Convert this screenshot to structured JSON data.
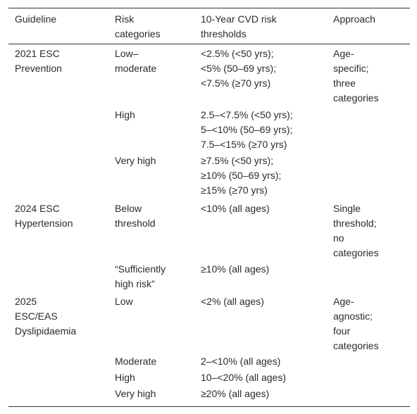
{
  "table": {
    "columns": [
      [
        "Guideline"
      ],
      [
        "Risk",
        "categories"
      ],
      [
        "10-Year CVD risk",
        "thresholds"
      ],
      [
        "Approach"
      ]
    ],
    "groups": [
      {
        "guideline": [
          "2021 ESC",
          "Prevention"
        ],
        "approach": [
          "Age-",
          "specific;",
          "three",
          "categories"
        ],
        "rows": [
          {
            "category": [
              "Low–",
              "moderate"
            ],
            "thresholds": [
              "<2.5% (<50 yrs);",
              "<5% (50–69 yrs);",
              "<7.5% (≥70 yrs)"
            ]
          },
          {
            "category": [
              "High"
            ],
            "thresholds": [
              "2.5–<7.5% (<50 yrs);",
              "5–<10% (50–69 yrs);",
              "7.5–<15% (≥70 yrs)"
            ]
          },
          {
            "category": [
              "Very high"
            ],
            "thresholds": [
              "≥7.5% (<50 yrs);",
              "≥10% (50–69 yrs);",
              "≥15% (≥70 yrs)"
            ]
          }
        ]
      },
      {
        "guideline": [
          "2024 ESC",
          "Hypertension"
        ],
        "approach": [
          "Single",
          "threshold;",
          "no",
          "categories"
        ],
        "rows": [
          {
            "category": [
              "Below",
              "threshold"
            ],
            "thresholds": [
              "<10% (all ages)"
            ]
          },
          {
            "category": [
              "“Sufficiently",
              "high risk”"
            ],
            "thresholds": [
              "≥10% (all ages)"
            ]
          }
        ]
      },
      {
        "guideline": [
          "2025",
          "ESC/EAS",
          "Dyslipidaemia"
        ],
        "approach": [
          "Age-",
          "agnostic;",
          "four",
          "categories"
        ],
        "rows": [
          {
            "category": [
              "Low"
            ],
            "thresholds": [
              "<2% (all ages)"
            ]
          },
          {
            "category": [
              "Moderate"
            ],
            "thresholds": [
              "2–<10% (all ages)"
            ]
          },
          {
            "category": [
              "High"
            ],
            "thresholds": [
              "10–<20% (all ages)"
            ]
          },
          {
            "category": [
              "Very high"
            ],
            "thresholds": [
              "≥20% (all ages)"
            ]
          }
        ]
      }
    ]
  }
}
